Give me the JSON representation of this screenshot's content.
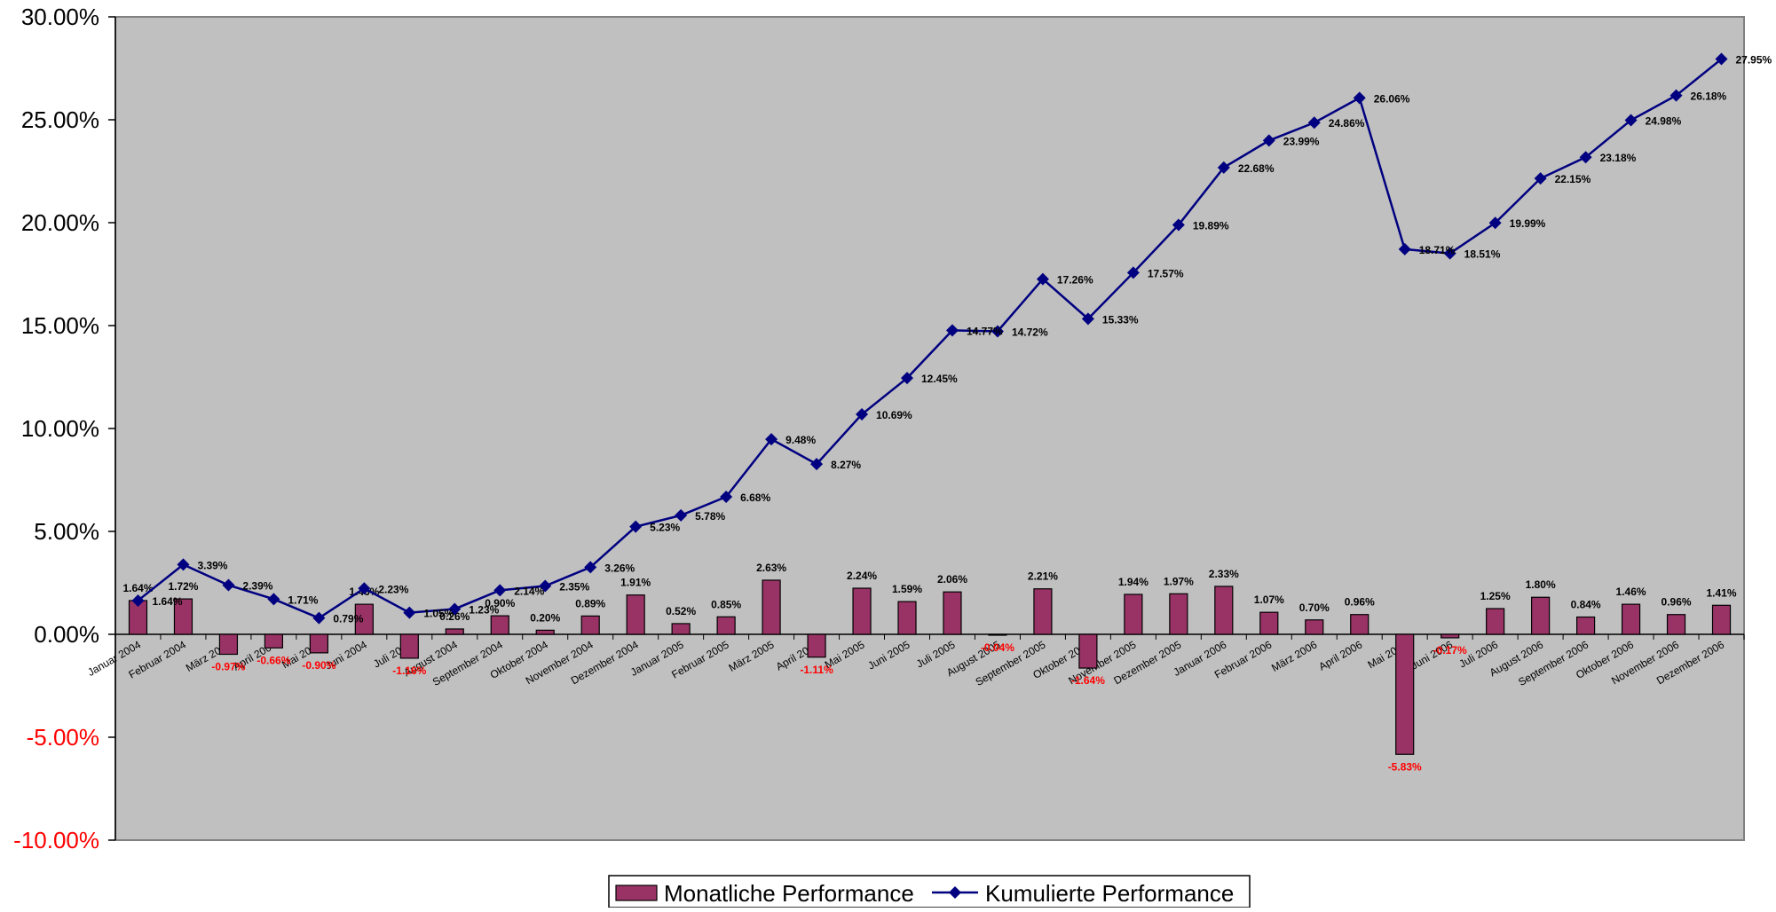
{
  "chart_data": {
    "type": "bar",
    "title": "",
    "xlabel": "",
    "ylabel": "",
    "ylim": [
      -10,
      30
    ],
    "y_ticks": [
      "30.00%",
      "25.00%",
      "20.00%",
      "15.00%",
      "10.00%",
      "5.00%",
      "0.00%",
      "-5.00%",
      "-10.00%"
    ],
    "y_tick_values": [
      30,
      25,
      20,
      15,
      10,
      5,
      0,
      -5,
      -10
    ],
    "grid": false,
    "legend_position": "bottom",
    "colors": {
      "plot_background": "#c0c0c0",
      "bar_fill": "#993366",
      "line": "#000080",
      "negative_label": "#ff0000",
      "positive_label": "#000000"
    },
    "categories": [
      "Januar 2004",
      "Februar 2004",
      "März 2004",
      "April 2004",
      "Mai 2004",
      "Juni 2004",
      "Juli 2004",
      "August 2004",
      "September 2004",
      "Oktober 2004",
      "November 2004",
      "Dezember 2004",
      "Januar 2005",
      "Februar 2005",
      "März 2005",
      "April 2005",
      "Mai 2005",
      "Juni 2005",
      "Juli 2005",
      "August 2005",
      "September 2005",
      "Oktober 2005",
      "November 2005",
      "Dezember 2005",
      "Januar 2006",
      "Februar 2006",
      "März 2006",
      "April 2006",
      "Mai 2006",
      "Juni 2006",
      "Juli 2006",
      "August 2006",
      "September 2006",
      "Oktober 2006",
      "November 2006",
      "Dezember 2006"
    ],
    "series": [
      {
        "name": "Monatliche Performance",
        "kind": "bar",
        "values": [
          1.64,
          1.72,
          -0.97,
          -0.66,
          -0.9,
          1.46,
          -1.16,
          0.26,
          0.9,
          0.2,
          0.89,
          1.91,
          0.52,
          0.85,
          2.63,
          -1.11,
          2.24,
          1.59,
          2.06,
          -0.04,
          2.21,
          -1.64,
          1.94,
          1.97,
          2.33,
          1.07,
          0.7,
          0.96,
          -5.83,
          -0.17,
          1.25,
          1.8,
          0.84,
          1.46,
          0.96,
          1.41
        ],
        "labels": [
          "1.64%",
          "1.72%",
          "-0.97%",
          "-0.66%",
          "-0.90%",
          "1.46%",
          "-1.16%",
          "0.26%",
          "0.90%",
          "0.20%",
          "0.89%",
          "1.91%",
          "0.52%",
          "0.85%",
          "2.63%",
          "-1.11%",
          "2.24%",
          "1.59%",
          "2.06%",
          "-0.04%",
          "2.21%",
          "-1.64%",
          "1.94%",
          "1.97%",
          "2.33%",
          "1.07%",
          "0.70%",
          "0.96%",
          "-5.83%",
          "-0.17%",
          "1.25%",
          "1.80%",
          "0.84%",
          "1.46%",
          "0.96%",
          "1.41%"
        ]
      },
      {
        "name": "Kumulierte Performance",
        "kind": "line",
        "values": [
          1.64,
          3.39,
          2.39,
          1.71,
          0.79,
          2.23,
          1.05,
          1.23,
          2.14,
          2.35,
          3.26,
          5.23,
          5.78,
          6.68,
          9.48,
          8.27,
          10.69,
          12.45,
          14.77,
          14.72,
          17.26,
          15.33,
          17.57,
          19.89,
          22.68,
          23.99,
          24.86,
          26.06,
          18.71,
          18.51,
          19.99,
          22.15,
          23.18,
          24.98,
          26.18,
          27.95
        ],
        "labels": [
          "1.64%",
          "3.39%",
          "2.39%",
          "1.71%",
          "0.79%",
          "2.23%",
          "1.05%",
          "1.23%",
          "2.14%",
          "2.35%",
          "3.26%",
          "5.23%",
          "5.78%",
          "6.68%",
          "9.48%",
          "8.27%",
          "10.69%",
          "12.45%",
          "14.77%",
          "14.72%",
          "17.26%",
          "15.33%",
          "17.57%",
          "19.89%",
          "22.68%",
          "23.99%",
          "24.86%",
          "26.06%",
          "18.71%",
          "18.51%",
          "19.99%",
          "22.15%",
          "23.18%",
          "24.98%",
          "26.18%",
          "27.95%"
        ]
      }
    ]
  }
}
